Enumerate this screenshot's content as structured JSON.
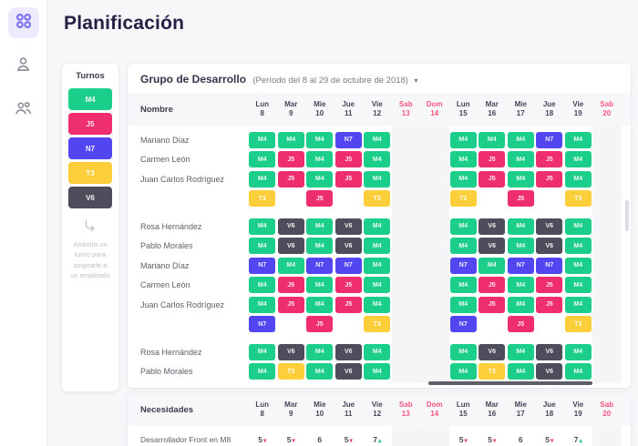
{
  "page": {
    "title": "Planificación"
  },
  "sidebar": {
    "items": [
      {
        "icon": "planning-grid-icon",
        "active": true
      },
      {
        "icon": "user-icon",
        "active": false
      },
      {
        "icon": "users-icon",
        "active": false
      }
    ]
  },
  "shift_colors": {
    "M4": "#1bce89",
    "J5": "#ef2e6e",
    "N7": "#5246f0",
    "T3": "#fcce3a",
    "V6": "#4d4d5b"
  },
  "turnos": {
    "title": "Turnos",
    "shifts": [
      "M4",
      "J5",
      "N7",
      "T3",
      "V6"
    ],
    "hint": "Arrastra un turno para asignarle a un empleado"
  },
  "icons": {
    "caret_down": "▾",
    "trend_up": "▴",
    "trend_down": "▾"
  },
  "trend_colors": {
    "up": "#1bce89",
    "down": "#f43f5e"
  },
  "schedule": {
    "group_title": "Grupo de Desarrollo",
    "period": "(Período del 8 al 29 de octubre de 2018)",
    "name_header": "Nombre",
    "days": [
      {
        "label": "Lun",
        "num": "8",
        "weekend": false
      },
      {
        "label": "Mar",
        "num": "9",
        "weekend": false
      },
      {
        "label": "Mie",
        "num": "10",
        "weekend": false
      },
      {
        "label": "Jue",
        "num": "11",
        "weekend": false
      },
      {
        "label": "Vie",
        "num": "12",
        "weekend": false
      },
      {
        "label": "Sab",
        "num": "13",
        "weekend": true
      },
      {
        "label": "Dom",
        "num": "14",
        "weekend": true
      },
      {
        "label": "Lun",
        "num": "15",
        "weekend": false
      },
      {
        "label": "Mar",
        "num": "16",
        "weekend": false
      },
      {
        "label": "Mie",
        "num": "17",
        "weekend": false
      },
      {
        "label": "Jue",
        "num": "18",
        "weekend": false
      },
      {
        "label": "Vie",
        "num": "19",
        "weekend": false
      },
      {
        "label": "Sab",
        "num": "20",
        "weekend": true
      }
    ],
    "rows": [
      {
        "name": "Mariano Díaz",
        "gap_before": false,
        "cells": [
          "M4",
          "M4",
          "M4",
          "N7",
          "M4",
          "",
          "",
          "M4",
          "M4",
          "M4",
          "N7",
          "M4",
          ""
        ]
      },
      {
        "name": "Carmen León",
        "gap_before": false,
        "cells": [
          "M4",
          "J5",
          "M4",
          "J5",
          "M4",
          "",
          "",
          "M4",
          "J5",
          "M4",
          "J5",
          "M4",
          ""
        ]
      },
      {
        "name": "Juan Carlos Rodríguez",
        "gap_before": false,
        "cells": [
          "M4",
          "J5",
          "M4",
          "J5",
          "M4",
          "",
          "",
          "M4",
          "J5",
          "M4",
          "J5",
          "M4",
          ""
        ]
      },
      {
        "name": "",
        "gap_before": false,
        "cells": [
          "T3",
          "",
          "J5",
          "",
          "T3",
          "",
          "",
          "T3",
          "",
          "J5",
          "",
          "T3",
          ""
        ]
      },
      {
        "name": "Rosa Hernández",
        "gap_before": true,
        "cells": [
          "M4",
          "V6",
          "M4",
          "V6",
          "M4",
          "",
          "",
          "M4",
          "V6",
          "M4",
          "V6",
          "M4",
          ""
        ]
      },
      {
        "name": "Pablo Morales",
        "gap_before": false,
        "cells": [
          "M4",
          "V6",
          "M4",
          "V6",
          "M4",
          "",
          "",
          "M4",
          "V6",
          "M4",
          "V6",
          "M4",
          ""
        ]
      },
      {
        "name": "Mariano Díaz",
        "gap_before": false,
        "cells": [
          "N7",
          "M4",
          "N7",
          "N7",
          "M4",
          "",
          "",
          "N7",
          "M4",
          "N7",
          "N7",
          "M4",
          ""
        ]
      },
      {
        "name": "Carmen León",
        "gap_before": false,
        "cells": [
          "M4",
          "J5",
          "M4",
          "J5",
          "M4",
          "",
          "",
          "M4",
          "J5",
          "M4",
          "J5",
          "M4",
          ""
        ]
      },
      {
        "name": "Juan Carlos Rodríguez",
        "gap_before": false,
        "cells": [
          "M4",
          "J5",
          "M4",
          "J5",
          "M4",
          "",
          "",
          "M4",
          "J5",
          "M4",
          "J5",
          "M4",
          ""
        ]
      },
      {
        "name": "",
        "gap_before": false,
        "cells": [
          "N7",
          "",
          "J5",
          "",
          "T3",
          "",
          "",
          "N7",
          "",
          "J5",
          "",
          "T3",
          ""
        ]
      },
      {
        "name": "Rosa Hernández",
        "gap_before": true,
        "cells": [
          "M4",
          "V6",
          "M4",
          "V6",
          "M4",
          "",
          "",
          "M4",
          "V6",
          "M4",
          "V6",
          "M4",
          ""
        ]
      },
      {
        "name": "Pablo Morales",
        "gap_before": false,
        "cells": [
          "M4",
          "T3",
          "M4",
          "V6",
          "M4",
          "",
          "",
          "M4",
          "T3",
          "M4",
          "V6",
          "M4",
          ""
        ]
      }
    ]
  },
  "needs": {
    "header": "Necesidades",
    "rows": [
      {
        "name": "Desarrollador Front en M8",
        "values": [
          {
            "value": "5",
            "trend": "down"
          },
          {
            "value": "5",
            "trend": "down"
          },
          {
            "value": "6",
            "trend": "none"
          },
          {
            "value": "5",
            "trend": "down"
          },
          {
            "value": "7",
            "trend": "up"
          },
          {
            "value": "",
            "trend": "none"
          },
          {
            "value": "",
            "trend": "none"
          },
          {
            "value": "5",
            "trend": "down"
          },
          {
            "value": "5",
            "trend": "down"
          },
          {
            "value": "6",
            "trend": "none"
          },
          {
            "value": "5",
            "trend": "down"
          },
          {
            "value": "7",
            "trend": "up"
          },
          {
            "value": "",
            "trend": "none"
          }
        ]
      }
    ]
  }
}
